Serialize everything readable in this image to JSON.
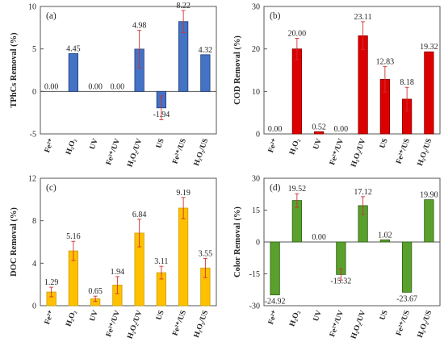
{
  "chart_data": [
    {
      "type": "bar",
      "panel_label": "(a)",
      "ylabel": "TPhCs Removal (%)",
      "ylim": [
        -5,
        10
      ],
      "yticks": [
        "-5",
        "0",
        "5",
        "10"
      ],
      "categories": [
        "Fe²⁺",
        "H₂O₂",
        "UV",
        "Fe²⁺/UV",
        "H₂O₂/UV",
        "US",
        "Fe²⁺/US",
        "H₂O₂/US"
      ],
      "values": [
        0.0,
        4.45,
        0.0,
        0.0,
        4.98,
        -1.94,
        8.22,
        4.32
      ],
      "labels": [
        "0.00",
        "4.45",
        "0.00",
        "0.00",
        "4.98",
        "-1.94",
        "8.22",
        "4.32"
      ],
      "errors": [
        0,
        0,
        0,
        0,
        2.2,
        1.4,
        1.3,
        0
      ],
      "color": "#4472c4",
      "edge": "#1f3c78"
    },
    {
      "type": "bar",
      "panel_label": "(b)",
      "ylabel": "COD Removal (%)",
      "ylim": [
        0,
        30
      ],
      "yticks": [
        "0",
        "10",
        "20",
        "30"
      ],
      "categories": [
        "Fe²⁺",
        "H₂O₂",
        "UV",
        "Fe²⁺/UV",
        "H₂O₂/UV",
        "US",
        "Fe²⁺/US",
        "H₂O₂/US"
      ],
      "values": [
        0.0,
        20.0,
        0.52,
        0.0,
        23.11,
        12.83,
        8.18,
        19.32
      ],
      "labels": [
        "0.00",
        "20.00",
        "0.52",
        "0.00",
        "23.11",
        "12.83",
        "8.18",
        "19.32"
      ],
      "errors": [
        0,
        2.5,
        0,
        0,
        3.3,
        3.0,
        2.8,
        0
      ],
      "color": "#dd0000",
      "edge": "#8a0000"
    },
    {
      "type": "bar",
      "panel_label": "(c)",
      "ylabel": "DOC Removal (%)",
      "ylim": [
        0,
        12
      ],
      "yticks": [
        "0",
        "4",
        "8",
        "12"
      ],
      "categories": [
        "Fe²⁺",
        "H₂O₂",
        "UV",
        "Fe²⁺/UV",
        "H₂O₂/UV",
        "US",
        "Fe²⁺/US",
        "H₂O₂/US"
      ],
      "values": [
        1.29,
        5.16,
        0.65,
        1.94,
        6.84,
        3.11,
        9.19,
        3.55
      ],
      "labels": [
        "1.29",
        "5.16",
        "0.65",
        "1.94",
        "6.84",
        "3.11",
        "9.19",
        "3.55"
      ],
      "errors": [
        0.45,
        0.9,
        0.25,
        0.8,
        1.3,
        0.6,
        1.0,
        0.9
      ],
      "color": "#ffc000",
      "edge": "#c8a000"
    },
    {
      "type": "bar",
      "panel_label": "(d)",
      "ylabel": "Color Removal (%)",
      "ylim": [
        -30,
        30
      ],
      "yticks": [
        "-30",
        "-15",
        "0",
        "15",
        "30"
      ],
      "categories": [
        "Fe²⁺",
        "H₂O₂",
        "UV",
        "Fe²⁺/UV",
        "H₂O₂/UV",
        "US",
        "Fe²⁺/US",
        "H₂O₂/US"
      ],
      "values": [
        -24.92,
        19.52,
        0.0,
        -15.32,
        17.12,
        1.02,
        -23.67,
        19.9
      ],
      "labels": [
        "-24.92",
        "19.52",
        "0.00",
        "-15.32",
        "17.12",
        "1.02",
        "-23.67",
        "19.90"
      ],
      "errors": [
        0,
        3.2,
        0,
        2.6,
        4.2,
        0,
        0,
        0
      ],
      "color": "#5aa02c",
      "edge": "#2e5f14"
    }
  ]
}
